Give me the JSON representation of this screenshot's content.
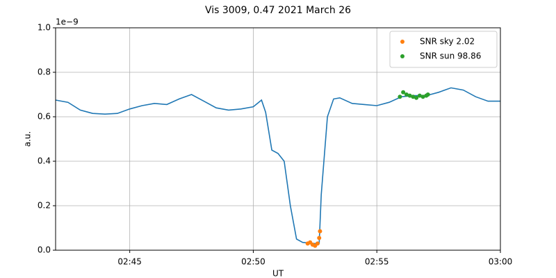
{
  "chart_data": {
    "type": "line",
    "title": "Vis 3009, 0.47 2021 March 26",
    "xlabel": "UT",
    "ylabel": "a.u.",
    "y_offset_label": "1e−9",
    "xlim": [
      "02:42",
      "03:00"
    ],
    "xticks": [
      "02:45",
      "02:50",
      "02:55",
      "03:00"
    ],
    "ylim": [
      0,
      1
    ],
    "yticks": [
      {
        "value": 0,
        "label": "0.0"
      },
      0.2,
      0.4,
      0.6,
      0.8,
      {
        "value": 1,
        "label": "1.0"
      }
    ],
    "grid": true,
    "legend": "upper right",
    "series": [
      {
        "type": "line",
        "color": "#1f77b4",
        "x": [
          "02:42:00",
          "02:42:30",
          "02:43:00",
          "02:43:30",
          "02:44:00",
          "02:44:30",
          "02:45:00",
          "02:45:30",
          "02:46:00",
          "02:46:30",
          "02:47:00",
          "02:47:30",
          "02:48:00",
          "02:48:30",
          "02:49:00",
          "02:49:30",
          "02:50:00",
          "02:50:20",
          "02:50:30",
          "02:50:45",
          "02:51:00",
          "02:51:15",
          "02:51:30",
          "02:51:45",
          "02:52:00",
          "02:52:30",
          "02:52:40",
          "02:52:45",
          "02:53:00",
          "02:53:15",
          "02:53:30",
          "02:54:00",
          "02:54:30",
          "02:55:00",
          "02:55:30",
          "02:56:00",
          "02:56:30",
          "02:57:00",
          "02:57:30",
          "02:58:00",
          "02:58:30",
          "02:59:00",
          "02:59:30",
          "03:00:00"
        ],
        "values": [
          0.675,
          0.665,
          0.63,
          0.615,
          0.612,
          0.615,
          0.635,
          0.65,
          0.66,
          0.655,
          0.68,
          0.7,
          0.67,
          0.64,
          0.63,
          0.635,
          0.645,
          0.675,
          0.62,
          0.45,
          0.435,
          0.4,
          0.2,
          0.05,
          0.035,
          0.03,
          0.03,
          0.25,
          0.6,
          0.68,
          0.685,
          0.66,
          0.655,
          0.65,
          0.665,
          0.69,
          0.695,
          0.695,
          0.71,
          0.73,
          0.72,
          0.69,
          0.67,
          0.67
        ]
      },
      {
        "type": "scatter",
        "name": "SNR sky 2.02",
        "color": "#ff7f0e",
        "x": [
          "02:52:12",
          "02:52:18",
          "02:52:24",
          "02:52:30",
          "02:52:36",
          "02:52:40",
          "02:52:42"
        ],
        "values": [
          0.03,
          0.035,
          0.025,
          0.02,
          0.03,
          0.055,
          0.085
        ]
      },
      {
        "type": "scatter",
        "name": "SNR sun 98.86",
        "color": "#2ca02c",
        "x": [
          "02:55:56",
          "02:56:04",
          "02:56:12",
          "02:56:20",
          "02:56:28",
          "02:56:36",
          "02:56:44",
          "02:56:52",
          "02:57:00",
          "02:57:04"
        ],
        "values": [
          0.69,
          0.71,
          0.7,
          0.695,
          0.69,
          0.685,
          0.695,
          0.69,
          0.695,
          0.7
        ]
      }
    ]
  }
}
